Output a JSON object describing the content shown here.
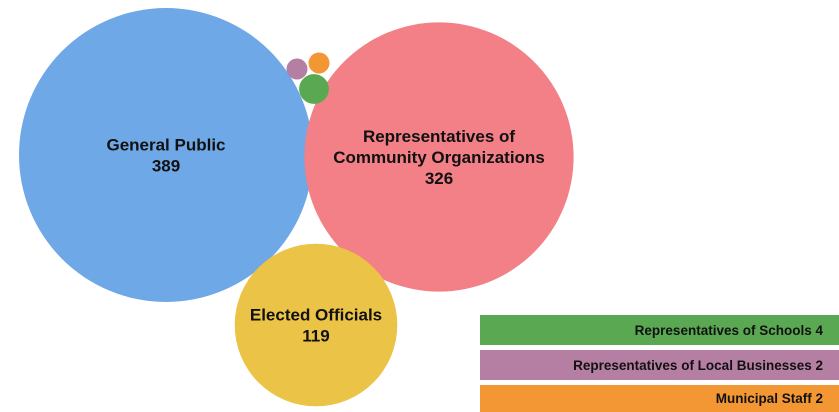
{
  "chart_data": {
    "type": "bubble",
    "series": [
      {
        "name": "General Public",
        "value": 389,
        "color": "#6fa8e6",
        "labeled": true,
        "label_lines": [
          "General Public",
          "389"
        ]
      },
      {
        "name": "Representatives of Community Organizations",
        "value": 326,
        "color": "#f28086",
        "labeled": true,
        "label_lines": [
          "Representatives of",
          "Community Organizations",
          "326"
        ]
      },
      {
        "name": "Elected Officials",
        "value": 119,
        "color": "#ebc346",
        "labeled": true,
        "label_lines": [
          "Elected Officials",
          "119"
        ]
      },
      {
        "name": "Representatives of Schools",
        "value": 4,
        "color": "#5aa852",
        "labeled": false
      },
      {
        "name": "Representatives of Local Businesses",
        "value": 2,
        "color": "#b57fa3",
        "labeled": false
      },
      {
        "name": "Municipal Staff",
        "value": 2,
        "color": "#f39634",
        "labeled": false
      }
    ]
  },
  "legend": [
    {
      "label": "Representatives of Schools 4",
      "color": "#5aa852"
    },
    {
      "label": "Representatives of Local Businesses 2",
      "color": "#b57fa3"
    },
    {
      "label": "Municipal Staff 2",
      "color": "#f39634"
    }
  ]
}
